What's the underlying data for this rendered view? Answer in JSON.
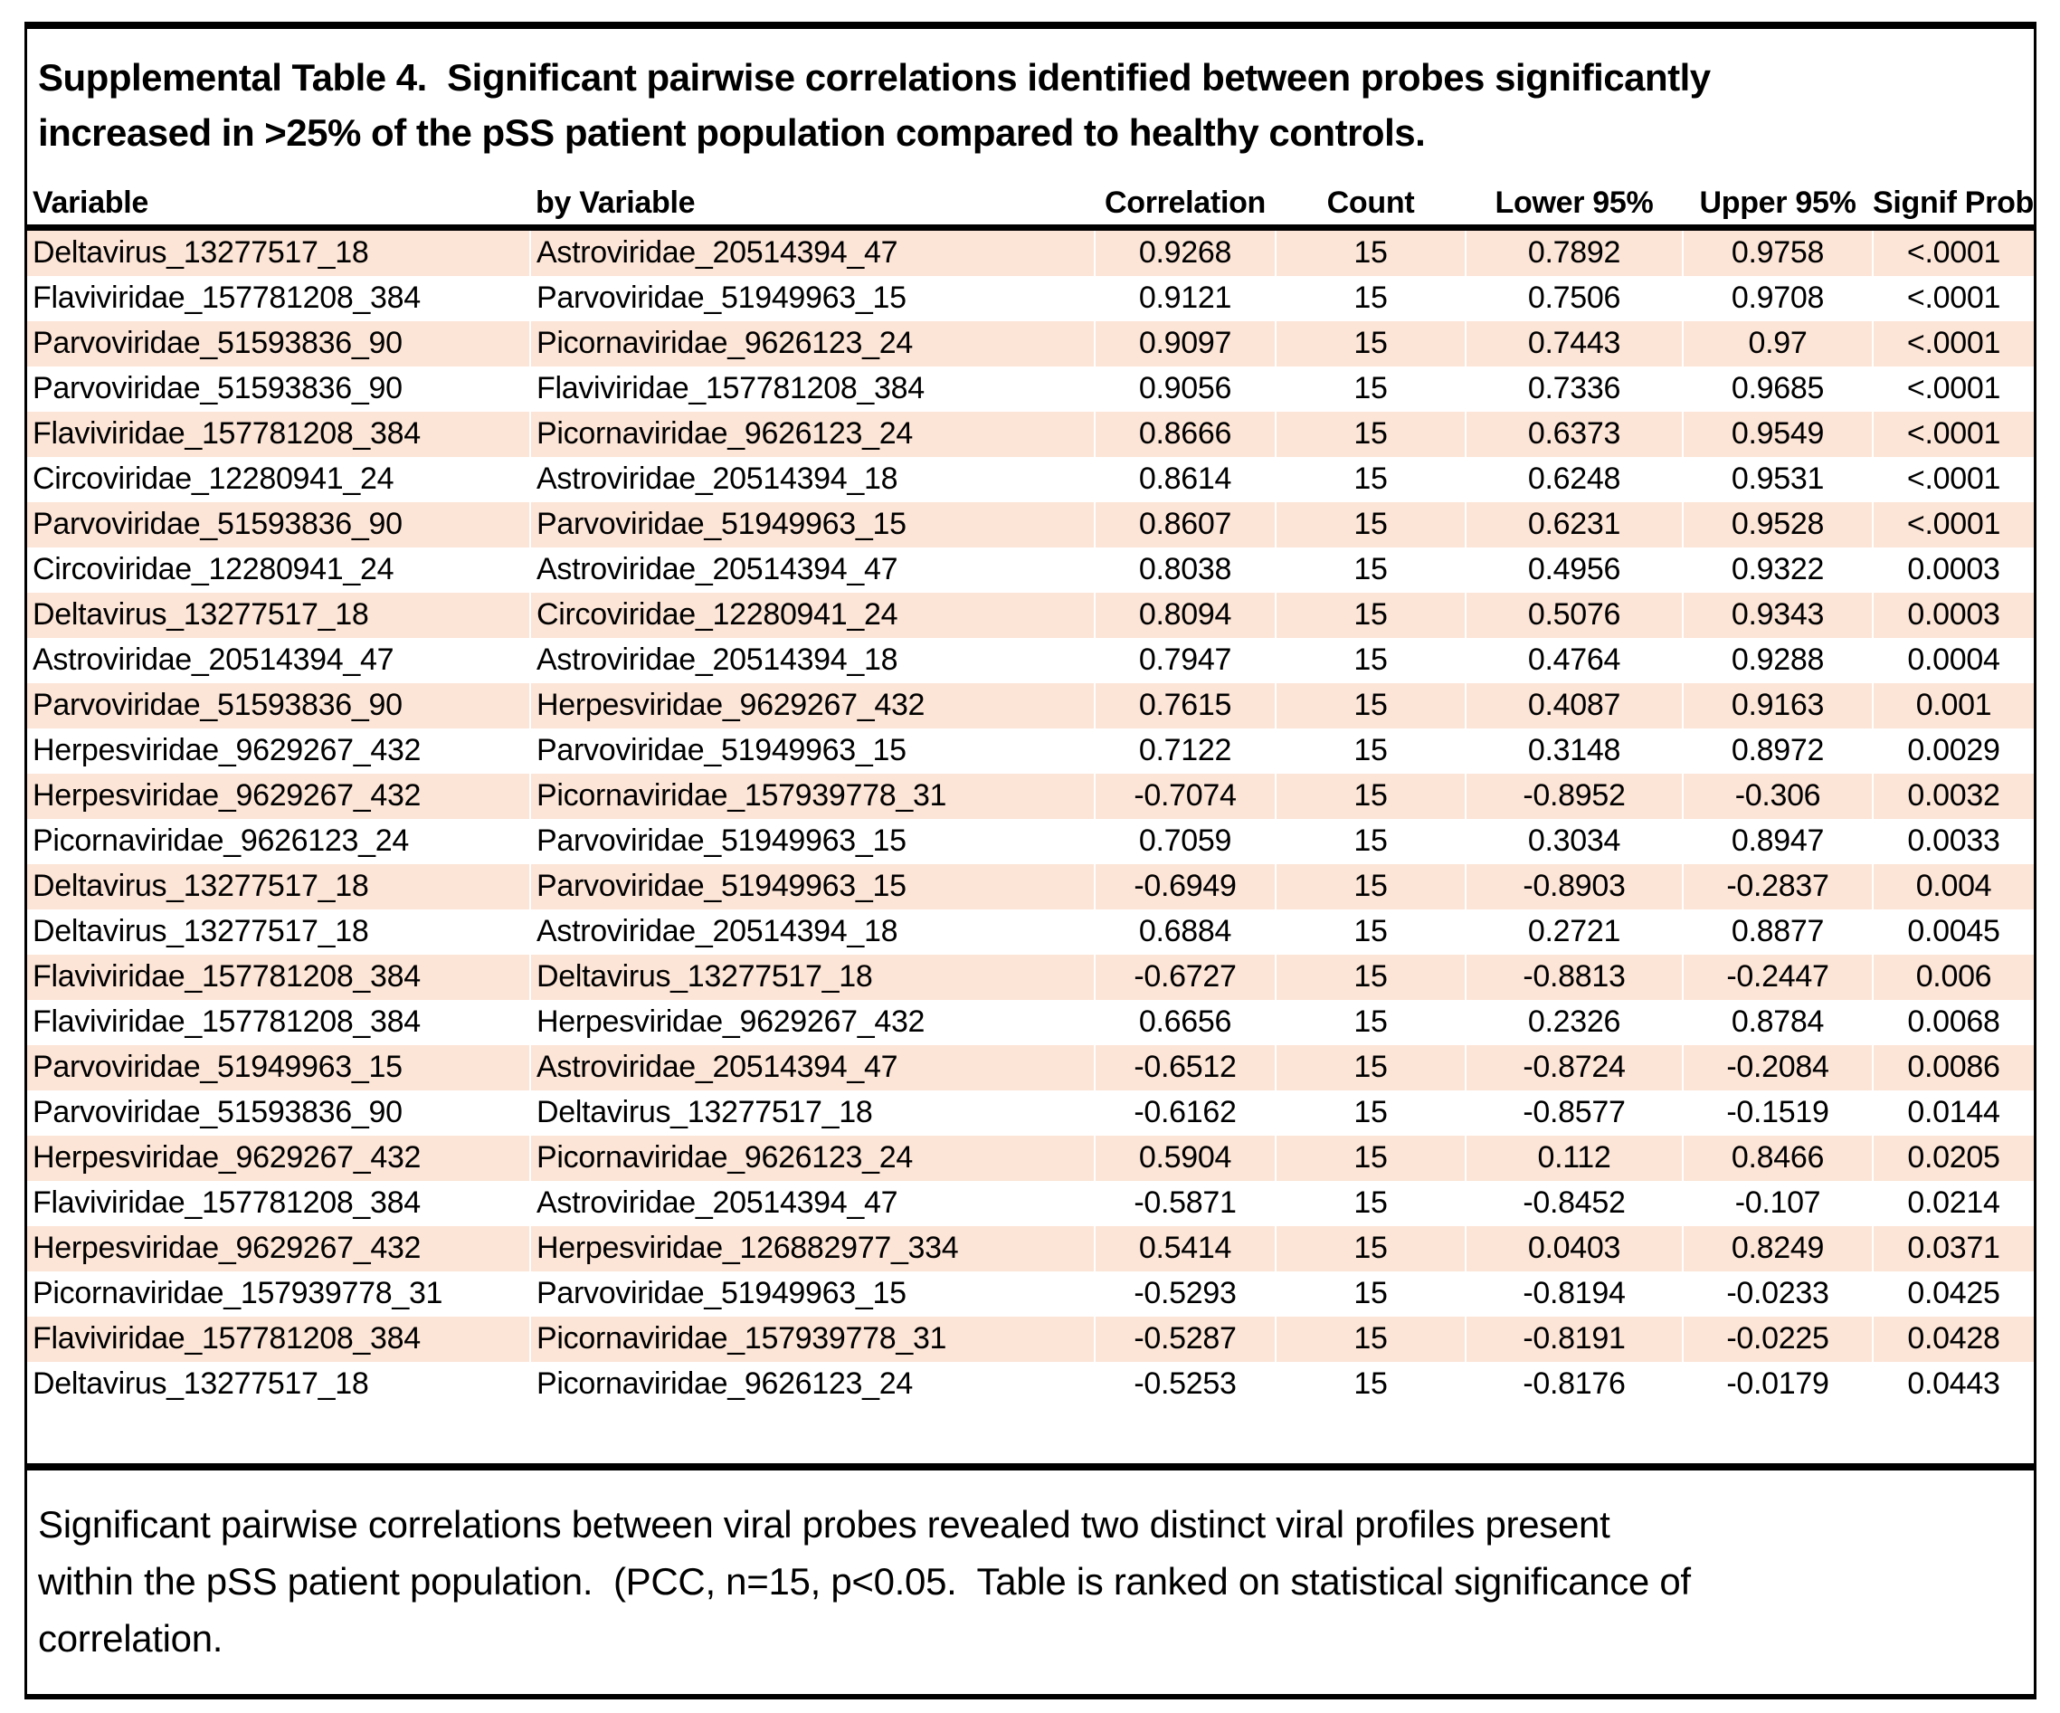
{
  "title": "Supplemental Table 4.  Significant pairwise correlations identified between probes significantly\nincreased in >25% of the pSS patient population compared to healthy controls.",
  "table": {
    "columns": [
      "Variable",
      "by Variable",
      "Correlation",
      "Count",
      "Lower 95%",
      "Upper 95%",
      "Signif Prob"
    ],
    "rows": [
      [
        "Deltavirus_13277517_18",
        "Astroviridae_20514394_47",
        "0.9268",
        "15",
        "0.7892",
        "0.9758",
        "<.0001"
      ],
      [
        "Flaviviridae_157781208_384",
        "Parvoviridae_51949963_15",
        "0.9121",
        "15",
        "0.7506",
        "0.9708",
        "<.0001"
      ],
      [
        "Parvoviridae_51593836_90",
        "Picornaviridae_9626123_24",
        "0.9097",
        "15",
        "0.7443",
        "0.97",
        "<.0001"
      ],
      [
        "Parvoviridae_51593836_90",
        "Flaviviridae_157781208_384",
        "0.9056",
        "15",
        "0.7336",
        "0.9685",
        "<.0001"
      ],
      [
        "Flaviviridae_157781208_384",
        "Picornaviridae_9626123_24",
        "0.8666",
        "15",
        "0.6373",
        "0.9549",
        "<.0001"
      ],
      [
        "Circoviridae_12280941_24",
        "Astroviridae_20514394_18",
        "0.8614",
        "15",
        "0.6248",
        "0.9531",
        "<.0001"
      ],
      [
        "Parvoviridae_51593836_90",
        "Parvoviridae_51949963_15",
        "0.8607",
        "15",
        "0.6231",
        "0.9528",
        "<.0001"
      ],
      [
        "Circoviridae_12280941_24",
        "Astroviridae_20514394_47",
        "0.8038",
        "15",
        "0.4956",
        "0.9322",
        "0.0003"
      ],
      [
        "Deltavirus_13277517_18",
        "Circoviridae_12280941_24",
        "0.8094",
        "15",
        "0.5076",
        "0.9343",
        "0.0003"
      ],
      [
        "Astroviridae_20514394_47",
        "Astroviridae_20514394_18",
        "0.7947",
        "15",
        "0.4764",
        "0.9288",
        "0.0004"
      ],
      [
        "Parvoviridae_51593836_90",
        "Herpesviridae_9629267_432",
        "0.7615",
        "15",
        "0.4087",
        "0.9163",
        "0.001"
      ],
      [
        "Herpesviridae_9629267_432",
        "Parvoviridae_51949963_15",
        "0.7122",
        "15",
        "0.3148",
        "0.8972",
        "0.0029"
      ],
      [
        "Herpesviridae_9629267_432",
        "Picornaviridae_157939778_31",
        "-0.7074",
        "15",
        "-0.8952",
        "-0.306",
        "0.0032"
      ],
      [
        "Picornaviridae_9626123_24",
        "Parvoviridae_51949963_15",
        "0.7059",
        "15",
        "0.3034",
        "0.8947",
        "0.0033"
      ],
      [
        "Deltavirus_13277517_18",
        "Parvoviridae_51949963_15",
        "-0.6949",
        "15",
        "-0.8903",
        "-0.2837",
        "0.004"
      ],
      [
        "Deltavirus_13277517_18",
        "Astroviridae_20514394_18",
        "0.6884",
        "15",
        "0.2721",
        "0.8877",
        "0.0045"
      ],
      [
        "Flaviviridae_157781208_384",
        "Deltavirus_13277517_18",
        "-0.6727",
        "15",
        "-0.8813",
        "-0.2447",
        "0.006"
      ],
      [
        "Flaviviridae_157781208_384",
        "Herpesviridae_9629267_432",
        "0.6656",
        "15",
        "0.2326",
        "0.8784",
        "0.0068"
      ],
      [
        "Parvoviridae_51949963_15",
        "Astroviridae_20514394_47",
        "-0.6512",
        "15",
        "-0.8724",
        "-0.2084",
        "0.0086"
      ],
      [
        "Parvoviridae_51593836_90",
        "Deltavirus_13277517_18",
        "-0.6162",
        "15",
        "-0.8577",
        "-0.1519",
        "0.0144"
      ],
      [
        "Herpesviridae_9629267_432",
        "Picornaviridae_9626123_24",
        "0.5904",
        "15",
        "0.112",
        "0.8466",
        "0.0205"
      ],
      [
        "Flaviviridae_157781208_384",
        "Astroviridae_20514394_47",
        "-0.5871",
        "15",
        "-0.8452",
        "-0.107",
        "0.0214"
      ],
      [
        "Herpesviridae_9629267_432",
        "Herpesviridae_126882977_334",
        "0.5414",
        "15",
        "0.0403",
        "0.8249",
        "0.0371"
      ],
      [
        "Picornaviridae_157939778_31",
        "Parvoviridae_51949963_15",
        "-0.5293",
        "15",
        "-0.8194",
        "-0.0233",
        "0.0425"
      ],
      [
        "Flaviviridae_157781208_384",
        "Picornaviridae_157939778_31",
        "-0.5287",
        "15",
        "-0.8191",
        "-0.0225",
        "0.0428"
      ],
      [
        "Deltavirus_13277517_18",
        "Picornaviridae_9626123_24",
        "-0.5253",
        "15",
        "-0.8176",
        "-0.0179",
        "0.0443"
      ]
    ]
  },
  "caption": "Significant pairwise correlations between viral probes revealed two distinct viral profiles present\nwithin the pSS patient population.  (PCC, n=15, p<0.05.  Table is ranked on statistical significance of\ncorrelation.",
  "colors": {
    "stripe": "#fce4d6",
    "border": "#000000",
    "background": "#ffffff",
    "text": "#000000"
  }
}
